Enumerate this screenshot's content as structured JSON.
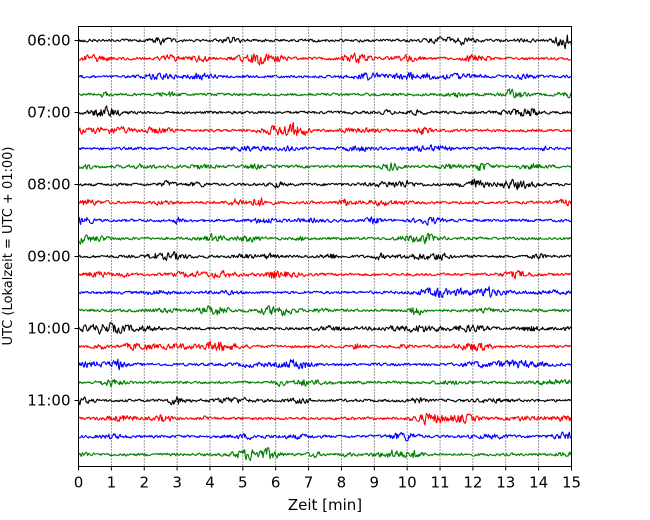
{
  "chart_data": {
    "type": "line",
    "title": "",
    "xlabel": "Zeit  [min]",
    "ylabel": "UTC (Lokalzeit = UTC + 01:00)",
    "xlim": [
      0,
      15
    ],
    "x_ticks": [
      "0",
      "1",
      "2",
      "3",
      "4",
      "5",
      "6",
      "7",
      "8",
      "9",
      "10",
      "11",
      "12",
      "13",
      "14",
      "15"
    ],
    "y_tick_labels": [
      "06:00",
      "07:00",
      "08:00",
      "09:00",
      "10:00",
      "11:00"
    ],
    "grid": "vertical dotted lines at each minute",
    "legend": "none",
    "trace_colors": [
      "#000000",
      "#ff0000",
      "#0000ff",
      "#007f00"
    ],
    "traces": [
      {
        "start": "06:00",
        "color": "#000000"
      },
      {
        "start": "06:15",
        "color": "#ff0000"
      },
      {
        "start": "06:30",
        "color": "#0000ff"
      },
      {
        "start": "06:45",
        "color": "#007f00"
      },
      {
        "start": "07:00",
        "color": "#000000"
      },
      {
        "start": "07:15",
        "color": "#ff0000"
      },
      {
        "start": "07:30",
        "color": "#0000ff"
      },
      {
        "start": "07:45",
        "color": "#007f00"
      },
      {
        "start": "08:00",
        "color": "#000000"
      },
      {
        "start": "08:15",
        "color": "#ff0000"
      },
      {
        "start": "08:30",
        "color": "#0000ff"
      },
      {
        "start": "08:45",
        "color": "#007f00"
      },
      {
        "start": "09:00",
        "color": "#000000"
      },
      {
        "start": "09:15",
        "color": "#ff0000"
      },
      {
        "start": "09:30",
        "color": "#0000ff"
      },
      {
        "start": "09:45",
        "color": "#007f00"
      },
      {
        "start": "10:00",
        "color": "#000000"
      },
      {
        "start": "10:15",
        "color": "#ff0000"
      },
      {
        "start": "10:30",
        "color": "#0000ff"
      },
      {
        "start": "10:45",
        "color": "#007f00"
      },
      {
        "start": "11:00",
        "color": "#000000"
      },
      {
        "start": "11:15",
        "color": "#ff0000"
      },
      {
        "start": "11:30",
        "color": "#0000ff"
      },
      {
        "start": "11:45",
        "color": "#007f00"
      }
    ]
  }
}
